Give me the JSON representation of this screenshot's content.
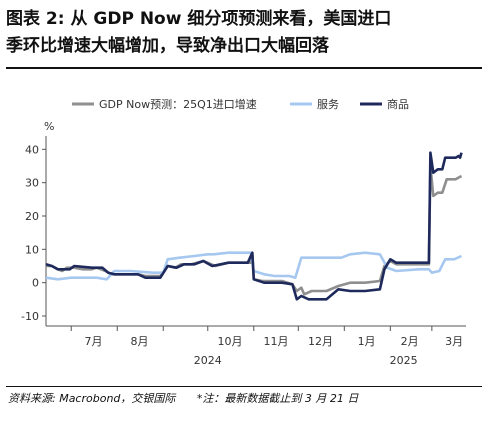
{
  "title_line1": "图表 2: 从 GDP Now 细分项预测来看，美国进口",
  "title_line2": "季环比增速大幅增加，导致净出口大幅回落",
  "source_left": "资料来源: Macrobond，交银国际",
  "source_right": "*注：最新数据截止到 3 月 21 日",
  "colors": {
    "gdp_now": "#8f8f8f",
    "services": "#a6c8f0",
    "goods": "#1f2a5c",
    "axis": "#555555"
  },
  "chart_data": {
    "type": "line",
    "y_unit": "%",
    "ylim": [
      -13,
      44
    ],
    "yticks": [
      -10,
      0,
      10,
      20,
      30,
      40
    ],
    "xlim": [
      "2024-06-14",
      "2025-03-24"
    ],
    "x_month_ticks": [
      "2024-07-01",
      "2024-08-01",
      "2024-09-01",
      "2024-10-01",
      "2024-11-01",
      "2024-12-01",
      "2025-01-01",
      "2025-02-01",
      "2025-03-01",
      "2025-04-01"
    ],
    "month_labels": [
      {
        "label": "7月",
        "date": "2024-07-16"
      },
      {
        "label": "8月",
        "date": "2024-08-16"
      },
      {
        "label": "10月",
        "date": "2024-10-16"
      },
      {
        "label": "11月",
        "date": "2024-11-16"
      },
      {
        "label": "12月",
        "date": "2024-12-16"
      },
      {
        "label": "1月",
        "date": "2025-01-16"
      },
      {
        "label": "2月",
        "date": "2025-02-14"
      },
      {
        "label": "3月",
        "date": "2025-03-16"
      }
    ],
    "year_labels": [
      {
        "label": "2024",
        "date": "2024-10-01"
      },
      {
        "label": "2025",
        "date": "2025-02-10"
      }
    ],
    "grid": false,
    "legend_position": "top",
    "series": [
      {
        "name": "GDP Now预测：25Q1进口增速",
        "color": "#8f8f8f",
        "points": [
          [
            "2024-06-14",
            5
          ],
          [
            "2024-06-18",
            5
          ],
          [
            "2024-06-22",
            4
          ],
          [
            "2024-06-25",
            3.5
          ],
          [
            "2024-06-28",
            4.5
          ],
          [
            "2024-07-03",
            4.5
          ],
          [
            "2024-07-09",
            4
          ],
          [
            "2024-07-15",
            4
          ],
          [
            "2024-07-18",
            4.5
          ],
          [
            "2024-07-24",
            3.5
          ],
          [
            "2024-07-28",
            2.5
          ],
          [
            "2024-08-05",
            2.5
          ],
          [
            "2024-08-10",
            2.5
          ],
          [
            "2024-08-15",
            2.5
          ],
          [
            "2024-08-20",
            2
          ],
          [
            "2024-08-30",
            2
          ],
          [
            "2024-09-04",
            5
          ],
          [
            "2024-09-09",
            4.5
          ],
          [
            "2024-09-13",
            5.5
          ],
          [
            "2024-09-20",
            5.5
          ],
          [
            "2024-09-28",
            6.5
          ],
          [
            "2024-10-06",
            5
          ],
          [
            "2024-10-15",
            6
          ],
          [
            "2024-10-24",
            6
          ],
          [
            "2024-10-30",
            6
          ],
          [
            "2024-10-31",
            9
          ],
          [
            "2024-11-01",
            1
          ],
          [
            "2024-11-07",
            0.5
          ],
          [
            "2024-11-20",
            0.5
          ],
          [
            "2024-11-27",
            -0.5
          ],
          [
            "2024-11-30",
            -2.5
          ],
          [
            "2024-12-03",
            -1.5
          ],
          [
            "2024-12-05",
            -3.5
          ],
          [
            "2024-12-10",
            -2.5
          ],
          [
            "2024-12-20",
            -2.5
          ],
          [
            "2024-12-28",
            -1
          ],
          [
            "2025-01-05",
            0
          ],
          [
            "2025-01-15",
            0
          ],
          [
            "2025-01-25",
            0.5
          ],
          [
            "2025-01-28",
            5
          ],
          [
            "2025-02-01",
            6.5
          ],
          [
            "2025-02-05",
            5.5
          ],
          [
            "2025-02-20",
            5.5
          ],
          [
            "2025-02-27",
            5.5
          ],
          [
            "2025-02-28",
            35
          ],
          [
            "2025-03-02",
            26
          ],
          [
            "2025-03-05",
            27
          ],
          [
            "2025-03-08",
            27
          ],
          [
            "2025-03-11",
            31
          ],
          [
            "2025-03-17",
            31
          ],
          [
            "2025-03-21",
            32
          ]
        ]
      },
      {
        "name": "服务",
        "color": "#a6c8f0",
        "points": [
          [
            "2024-06-14",
            1.5
          ],
          [
            "2024-06-22",
            1
          ],
          [
            "2024-07-01",
            1.5
          ],
          [
            "2024-07-18",
            1.5
          ],
          [
            "2024-07-25",
            1
          ],
          [
            "2024-07-30",
            3.5
          ],
          [
            "2024-08-10",
            3.5
          ],
          [
            "2024-08-25",
            3
          ],
          [
            "2024-09-01",
            3
          ],
          [
            "2024-09-04",
            7
          ],
          [
            "2024-09-12",
            7.5
          ],
          [
            "2024-09-22",
            8
          ],
          [
            "2024-10-01",
            8.5
          ],
          [
            "2024-10-05",
            8.5
          ],
          [
            "2024-10-15",
            9
          ],
          [
            "2024-10-30",
            9
          ],
          [
            "2024-11-01",
            3.5
          ],
          [
            "2024-11-08",
            2.5
          ],
          [
            "2024-11-15",
            2
          ],
          [
            "2024-11-25",
            2
          ],
          [
            "2024-11-29",
            1.5
          ],
          [
            "2024-12-03",
            7.5
          ],
          [
            "2024-12-20",
            7.5
          ],
          [
            "2024-12-30",
            7.5
          ],
          [
            "2025-01-05",
            8.5
          ],
          [
            "2025-01-15",
            9
          ],
          [
            "2025-01-25",
            8.5
          ],
          [
            "2025-01-30",
            4.5
          ],
          [
            "2025-02-05",
            3.5
          ],
          [
            "2025-02-20",
            4
          ],
          [
            "2025-02-27",
            4
          ],
          [
            "2025-03-01",
            3
          ],
          [
            "2025-03-06",
            3.5
          ],
          [
            "2025-03-10",
            7
          ],
          [
            "2025-03-16",
            7
          ],
          [
            "2025-03-21",
            8
          ]
        ]
      },
      {
        "name": "商品",
        "color": "#1f2a5c",
        "points": [
          [
            "2024-06-14",
            5.5
          ],
          [
            "2024-06-18",
            5
          ],
          [
            "2024-06-22",
            4
          ],
          [
            "2024-06-25",
            4
          ],
          [
            "2024-06-30",
            4
          ],
          [
            "2024-07-03",
            5
          ],
          [
            "2024-07-15",
            4.5
          ],
          [
            "2024-07-22",
            4.5
          ],
          [
            "2024-07-26",
            3
          ],
          [
            "2024-07-30",
            2.5
          ],
          [
            "2024-08-05",
            2.5
          ],
          [
            "2024-08-15",
            2.5
          ],
          [
            "2024-08-20",
            1.5
          ],
          [
            "2024-08-30",
            1.5
          ],
          [
            "2024-09-04",
            5
          ],
          [
            "2024-09-10",
            4.5
          ],
          [
            "2024-09-15",
            5.5
          ],
          [
            "2024-09-22",
            5.5
          ],
          [
            "2024-09-28",
            6.5
          ],
          [
            "2024-10-04",
            5
          ],
          [
            "2024-10-15",
            6
          ],
          [
            "2024-10-28",
            6
          ],
          [
            "2024-10-31",
            9
          ],
          [
            "2024-11-01",
            1
          ],
          [
            "2024-11-08",
            0
          ],
          [
            "2024-11-20",
            0
          ],
          [
            "2024-11-27",
            -0.5
          ],
          [
            "2024-11-30",
            -5
          ],
          [
            "2024-12-03",
            -4
          ],
          [
            "2024-12-08",
            -5
          ],
          [
            "2024-12-20",
            -5
          ],
          [
            "2024-12-28",
            -2
          ],
          [
            "2025-01-05",
            -2.5
          ],
          [
            "2025-01-15",
            -2.5
          ],
          [
            "2025-01-25",
            -2
          ],
          [
            "2025-01-28",
            4
          ],
          [
            "2025-02-01",
            7
          ],
          [
            "2025-02-05",
            6
          ],
          [
            "2025-02-20",
            6
          ],
          [
            "2025-02-27",
            6
          ],
          [
            "2025-02-28",
            39
          ],
          [
            "2025-03-02",
            33
          ],
          [
            "2025-03-05",
            34
          ],
          [
            "2025-03-08",
            34
          ],
          [
            "2025-03-10",
            37.5
          ],
          [
            "2025-03-17",
            37.5
          ],
          [
            "2025-03-19",
            38
          ],
          [
            "2025-03-20",
            37.5
          ],
          [
            "2025-03-21",
            39
          ]
        ]
      }
    ]
  }
}
